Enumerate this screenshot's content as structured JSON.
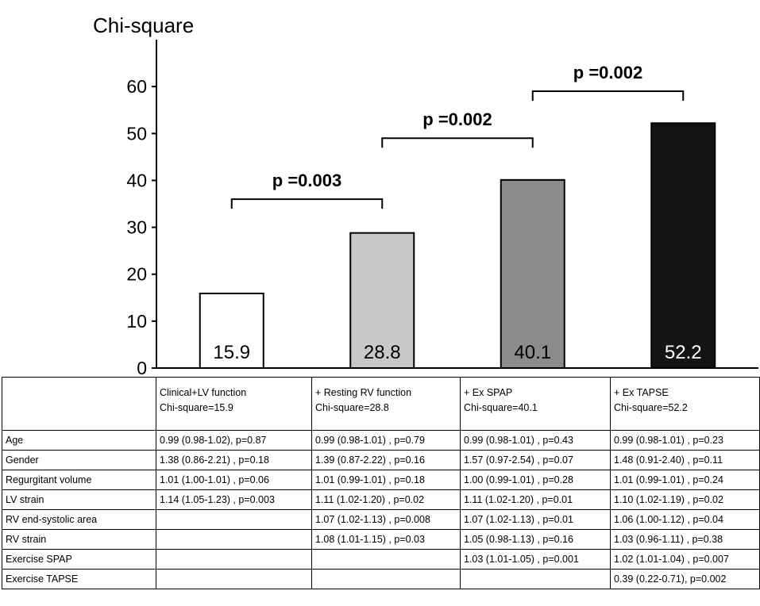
{
  "chart_data": {
    "type": "bar",
    "title": "Chi-square",
    "xlabel": "",
    "ylabel": "",
    "ylim": [
      0,
      70
    ],
    "yticks": [
      0,
      10,
      20,
      30,
      40,
      50,
      60
    ],
    "grid": false,
    "categories": [
      "Clinical+LV function",
      "+ Resting RV function",
      "+ Ex SPAP",
      "+ Ex TAPSE"
    ],
    "values": [
      15.9,
      28.8,
      40.1,
      52.2
    ],
    "data_labels": [
      "15.9",
      "28.8",
      "40.1",
      "52.2"
    ],
    "bar_colors": [
      "#ffffff",
      "#c8c8c8",
      "#8c8c8c",
      "#141414"
    ],
    "label_colors": [
      "#000000",
      "#000000",
      "#000000",
      "#ffffff"
    ],
    "annotations": [
      {
        "text": "p =0.003",
        "from": 0,
        "to": 1,
        "y": 36
      },
      {
        "text": "p =0.002",
        "from": 1,
        "to": 2,
        "y": 49
      },
      {
        "text": "p =0.002",
        "from": 2,
        "to": 3,
        "y": 59
      }
    ]
  },
  "table": {
    "headers": [
      {
        "line1": "",
        "line2": ""
      },
      {
        "line1": "Clinical+LV function",
        "line2": "Chi-square=15.9"
      },
      {
        "line1": "+ Resting RV function",
        "line2": "Chi-square=28.8"
      },
      {
        "line1": "+ Ex SPAP",
        "line2": "Chi-square=40.1"
      },
      {
        "line1": "+ Ex TAPSE",
        "line2": "Chi-square=52.2"
      }
    ],
    "rows": [
      [
        "Age",
        "0.99 (0.98-1.02), p=0.87",
        "0.99 (0.98-1.01) , p=0.79",
        "0.99 (0.98-1.01) , p=0.43",
        "0.99 (0.98-1.01) , p=0.23"
      ],
      [
        "Gender",
        "1.38 (0.86-2.21) , p=0.18",
        "1.39 (0.87-2.22) , p=0.16",
        "1.57 (0.97-2.54) , p=0.07",
        "1.48 (0.91-2.40) , p=0.11"
      ],
      [
        "Regurgitant volume",
        "1.01 (1.00-1.01) , p=0.06",
        "1.01 (0.99-1.01) , p=0.18",
        "1.00 (0.99-1.01) , p=0.28",
        "1.01 (0.99-1.01) , p=0.24"
      ],
      [
        "LV strain",
        "1.14 (1.05-1.23) , p=0.003",
        "1.11 (1.02-1.20) , p=0.02",
        "1.11 (1.02-1.20) , p=0.01",
        "1.10 (1.02-1.19) , p=0.02"
      ],
      [
        "RV end-systolic area",
        "",
        "1.07 (1.02-1.13) , p=0.008",
        "1.07 (1.02-1.13) , p=0.01",
        "1.06 (1.00-1.12) , p=0.04"
      ],
      [
        "RV strain",
        "",
        "1.08 (1.01-1.15) , p=0.03",
        "1.05 (0.98-1.13) , p=0.16",
        "1.03 (0.96-1.11) , p=0.38"
      ],
      [
        "Exercise SPAP",
        "",
        "",
        "1.03 (1.01-1.05) , p=0.001",
        "1.02 (1.01-1.04) , p=0.007"
      ],
      [
        "Exercise TAPSE",
        "",
        "",
        "",
        "0.39 (0.22-0.71), p=0.002"
      ]
    ]
  }
}
